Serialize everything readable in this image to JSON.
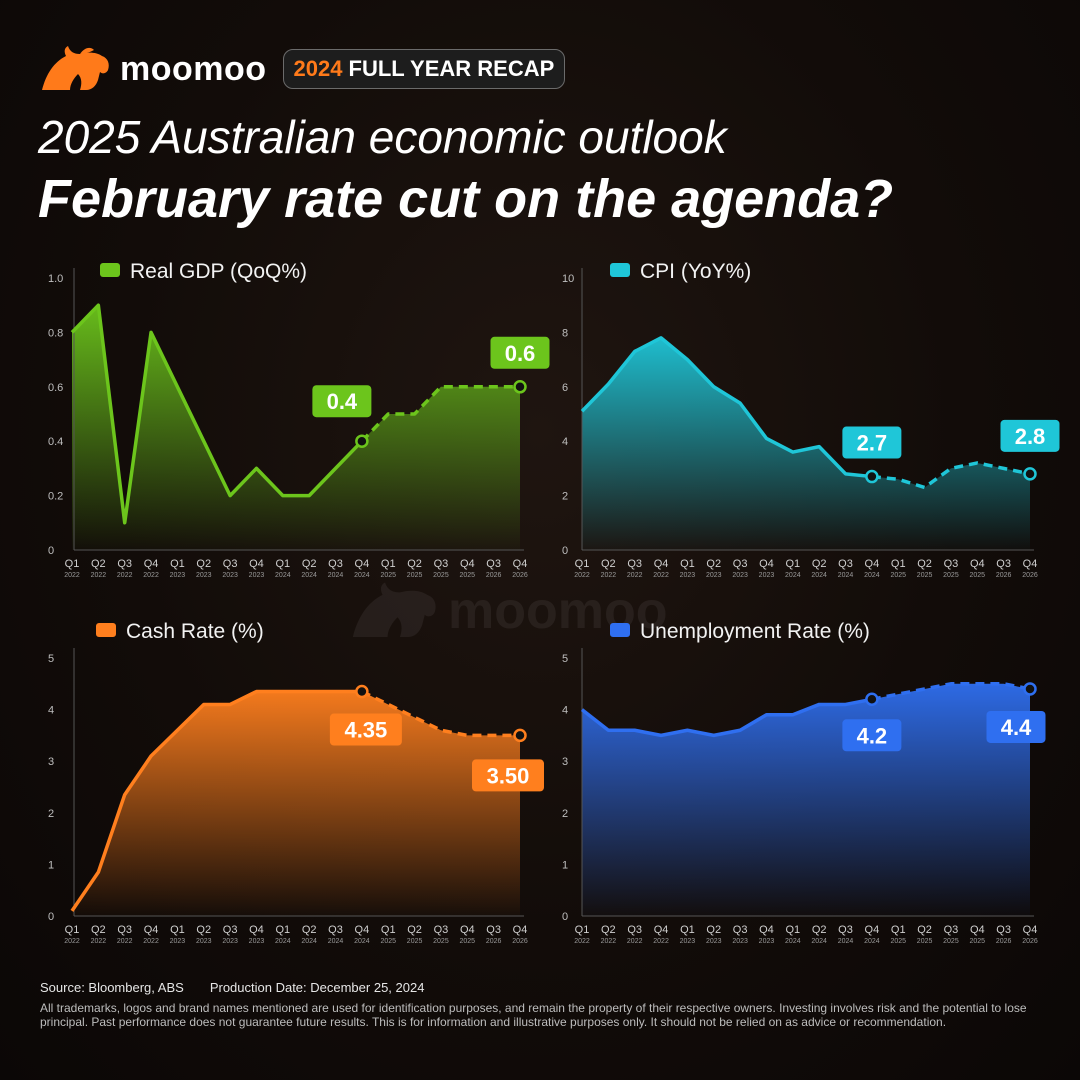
{
  "header": {
    "brand_name": "moomoo",
    "recap_year": "2024",
    "recap_text": "FULL YEAR RECAP",
    "title_line1": "2025 Australian economic outlook",
    "title_line2": "February rate cut on the agenda?"
  },
  "watermark": {
    "text": "moomoo"
  },
  "colors": {
    "gdp": "#6cc51c",
    "cpi": "#1fc6d8",
    "cash": "#ff7f1e",
    "unemployment": "#2f6ff0"
  },
  "footer": {
    "source": "Source: Bloomberg, ABS",
    "production_date": "Production Date: December 25, 2024",
    "disclaimer": "All trademarks, logos and brand names mentioned are used for identification purposes, and remain the property of their respective owners. Investing involves risk and the potential to lose principal. Past performance does not guarantee future results. This is for information and illustrative purposes only. It should not be relied on as advice or recommendation."
  },
  "chart_data": [
    {
      "type": "area",
      "legend": "Real GDP (QoQ%)",
      "color": "#6cc51c",
      "x_quarters": [
        "Q1",
        "Q2",
        "Q3",
        "Q4",
        "Q1",
        "Q2",
        "Q3",
        "Q4",
        "Q1",
        "Q2",
        "Q3",
        "Q4",
        "Q1",
        "Q2",
        "Q3",
        "Q4",
        "Q3",
        "Q4"
      ],
      "x_years": [
        "2022",
        "2022",
        "2022",
        "2022",
        "2023",
        "2023",
        "2023",
        "2023",
        "2024",
        "2024",
        "2024",
        "2024",
        "2025",
        "2025",
        "2025",
        "2025",
        "2026",
        "2026"
      ],
      "values": [
        0.8,
        0.9,
        0.1,
        0.8,
        0.6,
        0.4,
        0.2,
        0.3,
        0.2,
        0.2,
        0.3,
        0.4,
        0.5,
        0.5,
        0.6,
        0.6,
        0.6,
        0.6
      ],
      "forecast_from_index": 11,
      "ylim": [
        0,
        1.0
      ],
      "yticks": [
        "0",
        "0.2",
        "0.4",
        "0.6",
        "0.8",
        "1.0"
      ],
      "callouts": [
        {
          "index": 11,
          "label": "0.4"
        },
        {
          "index": 17,
          "label": "0.6"
        }
      ]
    },
    {
      "type": "area",
      "legend": "CPI (YoY%)",
      "color": "#1fc6d8",
      "x_quarters": [
        "Q1",
        "Q2",
        "Q3",
        "Q4",
        "Q1",
        "Q2",
        "Q3",
        "Q4",
        "Q1",
        "Q2",
        "Q3",
        "Q4",
        "Q1",
        "Q2",
        "Q3",
        "Q4",
        "Q3",
        "Q4"
      ],
      "x_years": [
        "2022",
        "2022",
        "2022",
        "2022",
        "2023",
        "2023",
        "2023",
        "2023",
        "2024",
        "2024",
        "2024",
        "2024",
        "2025",
        "2025",
        "2025",
        "2025",
        "2026",
        "2026"
      ],
      "values": [
        5.1,
        6.1,
        7.3,
        7.8,
        7.0,
        6.0,
        5.4,
        4.1,
        3.6,
        3.8,
        2.8,
        2.7,
        2.6,
        2.3,
        3.0,
        3.2,
        3.0,
        2.8
      ],
      "forecast_from_index": 11,
      "ylim": [
        0,
        10
      ],
      "yticks": [
        "0",
        "2",
        "4",
        "6",
        "8",
        "10"
      ],
      "callouts": [
        {
          "index": 11,
          "label": "2.7"
        },
        {
          "index": 17,
          "label": "2.8"
        }
      ]
    },
    {
      "type": "area",
      "legend": "Cash Rate (%)",
      "color": "#ff7f1e",
      "x_quarters": [
        "Q1",
        "Q2",
        "Q3",
        "Q4",
        "Q1",
        "Q2",
        "Q3",
        "Q4",
        "Q1",
        "Q2",
        "Q3",
        "Q4",
        "Q1",
        "Q2",
        "Q3",
        "Q4",
        "Q3",
        "Q4"
      ],
      "x_years": [
        "2022",
        "2022",
        "2022",
        "2022",
        "2023",
        "2023",
        "2023",
        "2023",
        "2024",
        "2024",
        "2024",
        "2024",
        "2025",
        "2025",
        "2025",
        "2025",
        "2026",
        "2026"
      ],
      "values": [
        0.1,
        0.85,
        2.35,
        3.1,
        3.6,
        4.1,
        4.1,
        4.35,
        4.35,
        4.35,
        4.35,
        4.35,
        4.1,
        3.85,
        3.6,
        3.5,
        3.5,
        3.5
      ],
      "forecast_from_index": 11,
      "ylim": [
        0,
        5
      ],
      "yticks": [
        "0",
        "1",
        "2",
        "3",
        "4",
        "5"
      ],
      "callouts": [
        {
          "index": 11,
          "label": "4.35"
        },
        {
          "index": 17,
          "label": "3.50"
        }
      ]
    },
    {
      "type": "area",
      "legend": "Unemployment Rate (%)",
      "color": "#2f6ff0",
      "x_quarters": [
        "Q1",
        "Q2",
        "Q3",
        "Q4",
        "Q1",
        "Q2",
        "Q3",
        "Q4",
        "Q1",
        "Q2",
        "Q3",
        "Q4",
        "Q1",
        "Q2",
        "Q3",
        "Q4",
        "Q3",
        "Q4"
      ],
      "x_years": [
        "2022",
        "2022",
        "2022",
        "2022",
        "2023",
        "2023",
        "2023",
        "2023",
        "2024",
        "2024",
        "2024",
        "2024",
        "2025",
        "2025",
        "2025",
        "2025",
        "2026",
        "2026"
      ],
      "values": [
        4.0,
        3.6,
        3.6,
        3.5,
        3.6,
        3.5,
        3.6,
        3.9,
        3.9,
        4.1,
        4.1,
        4.2,
        4.3,
        4.4,
        4.5,
        4.5,
        4.5,
        4.4
      ],
      "forecast_from_index": 11,
      "ylim": [
        0,
        5
      ],
      "yticks": [
        "0",
        "1",
        "2",
        "3",
        "4",
        "5"
      ],
      "callouts": [
        {
          "index": 11,
          "label": "4.2"
        },
        {
          "index": 17,
          "label": "4.4"
        }
      ]
    }
  ]
}
